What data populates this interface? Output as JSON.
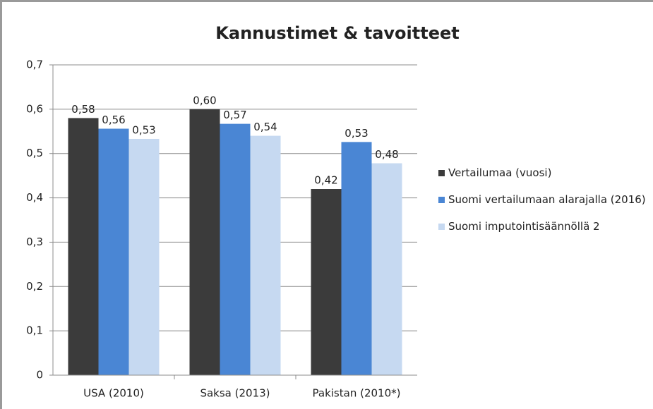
{
  "chart_data": {
    "type": "bar",
    "title": "Kannustimet & tavoitteet",
    "categories": [
      "USA (2010)",
      "Saksa (2013)",
      "Pakistan (2010*)"
    ],
    "series": [
      {
        "name": "Vertailumaa (vuosi)",
        "color": "#3b3b3b",
        "values": [
          0.58,
          0.6,
          0.42
        ],
        "value_labels": [
          "0,58",
          "0,60",
          "0,42"
        ]
      },
      {
        "name": "Suomi vertailumaan alarajalla (2016)",
        "color": "#4a86d4",
        "values": [
          0.556,
          0.567,
          0.526
        ],
        "value_labels": [
          "0,56",
          "0,57",
          "0,53"
        ]
      },
      {
        "name": "Suomi imputointisäännöllä 2",
        "color": "#c6d9f1",
        "values": [
          0.533,
          0.54,
          0.478
        ],
        "value_labels": [
          "0,53",
          "0,54",
          "0,48"
        ]
      }
    ],
    "ylim": [
      0,
      0.7
    ],
    "yticks": [
      {
        "value": 0,
        "label": "0"
      },
      {
        "value": 0.1,
        "label": "0,1"
      },
      {
        "value": 0.2,
        "label": "0,2"
      },
      {
        "value": 0.3,
        "label": "0,3"
      },
      {
        "value": 0.4,
        "label": "0,4"
      },
      {
        "value": 0.5,
        "label": "0,5"
      },
      {
        "value": 0.6,
        "label": "0,6"
      },
      {
        "value": 0.7,
        "label": "0,7"
      }
    ],
    "grid": true,
    "legend": "right"
  }
}
